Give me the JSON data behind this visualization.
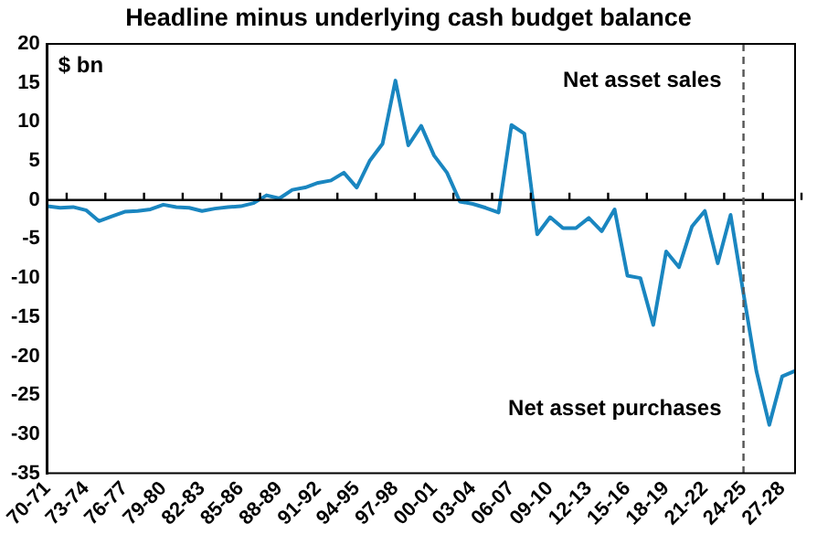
{
  "chart_data": {
    "type": "line",
    "title": "Headline minus underlying cash budget balance",
    "ylabel": "$ bn",
    "categories": [
      "70-71",
      null,
      null,
      "73-74",
      null,
      null,
      "76-77",
      null,
      null,
      "79-80",
      null,
      null,
      "82-83",
      null,
      null,
      "85-86",
      null,
      null,
      "88-89",
      null,
      null,
      "91-92",
      null,
      null,
      "94-95",
      null,
      null,
      "97-98",
      null,
      null,
      "00-01",
      null,
      null,
      "03-04",
      null,
      null,
      "06-07",
      null,
      null,
      "09-10",
      null,
      null,
      "12-13",
      null,
      null,
      "15-16",
      null,
      null,
      "18-19",
      null,
      null,
      "21-22",
      null,
      null,
      "24-25",
      null,
      null,
      "27-28",
      null
    ],
    "series": [
      {
        "color": "#1a86c0",
        "values": [
          -0.8,
          -1.0,
          -0.9,
          -1.3,
          -2.7,
          -2.1,
          -1.5,
          -1.4,
          -1.2,
          -0.6,
          -0.9,
          -1.0,
          -1.4,
          -1.1,
          -0.9,
          -0.8,
          -0.4,
          0.6,
          0.2,
          1.3,
          1.6,
          2.2,
          2.5,
          3.5,
          1.6,
          5.0,
          7.2,
          15.3,
          7.0,
          9.5,
          5.7,
          3.5,
          -0.2,
          -0.5,
          -1.0,
          -1.6,
          9.6,
          8.5,
          -4.4,
          -2.2,
          -3.6,
          -3.6,
          -2.3,
          -4.0,
          -1.2,
          -9.7,
          -10.0,
          -16.0,
          -6.6,
          -8.6,
          -3.4,
          -1.4,
          -8.1,
          -1.9,
          -12.0,
          -21.9,
          -28.8,
          -22.6,
          -21.9
        ]
      }
    ],
    "ylim": [
      -35,
      20
    ],
    "yticks": [
      -35,
      -30,
      -25,
      -20,
      -15,
      -10,
      -5,
      0,
      5,
      10,
      15,
      20
    ],
    "grid": false,
    "legend": false,
    "marker": "none",
    "line_style": "solid",
    "ref_lines": [
      {
        "axis": "y",
        "value": 0,
        "color": "#000000",
        "line_style": "solid"
      },
      {
        "axis": "x",
        "value": "24-25",
        "color": "#555555",
        "line_style": "dashed"
      }
    ],
    "annotations": [
      "Net asset sales",
      "Net asset purchases"
    ]
  }
}
